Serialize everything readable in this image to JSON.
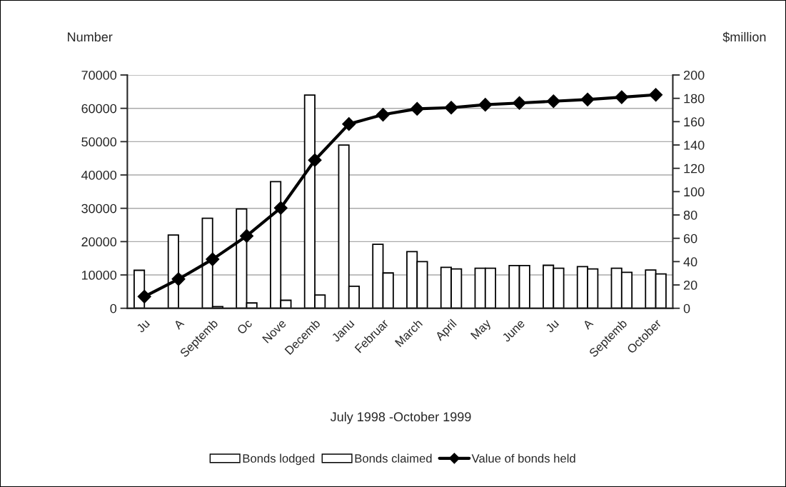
{
  "chart_data": {
    "type": "bar",
    "categories": [
      "Ju",
      "A",
      "Septemb",
      "Oc",
      "Nove",
      "Decemb",
      "Janu",
      "Februar",
      "March",
      "April",
      "May",
      "June",
      "Ju",
      "A",
      "Septemb",
      "October"
    ],
    "xlabel": "July 1998 -October 1999",
    "ylabel": "Number",
    "y2label": "$million",
    "series": [
      {
        "name": "Bonds lodged",
        "color": "#ffffff",
        "values": [
          11400,
          22000,
          27000,
          29800,
          38000,
          64000,
          49000,
          19200,
          17000,
          12300,
          12000,
          12800,
          12900,
          12500,
          12000,
          11500
        ]
      },
      {
        "name": "Bonds claimed",
        "color": "#ffffff",
        "values": [
          null,
          null,
          500,
          1600,
          2400,
          4000,
          6600,
          10600,
          14000,
          11800,
          12000,
          12800,
          12000,
          11800,
          10800,
          10300
        ]
      },
      {
        "name": "Value of bonds held",
        "type": "line",
        "axis": "y2",
        "color": "#000000",
        "marker": "diamond",
        "values": [
          10,
          25,
          42,
          62,
          86,
          127,
          158,
          166,
          171,
          172,
          174.5,
          176,
          177.5,
          179,
          181,
          183
        ]
      }
    ],
    "ylim": [
      0,
      70000
    ],
    "yticks": [
      0,
      10000,
      20000,
      30000,
      40000,
      50000,
      60000,
      70000
    ],
    "y2lim": [
      0,
      200
    ],
    "y2ticks": [
      0,
      20,
      40,
      60,
      80,
      100,
      120,
      140,
      160,
      180,
      200
    ],
    "grid": "y",
    "legend": "bottom"
  }
}
